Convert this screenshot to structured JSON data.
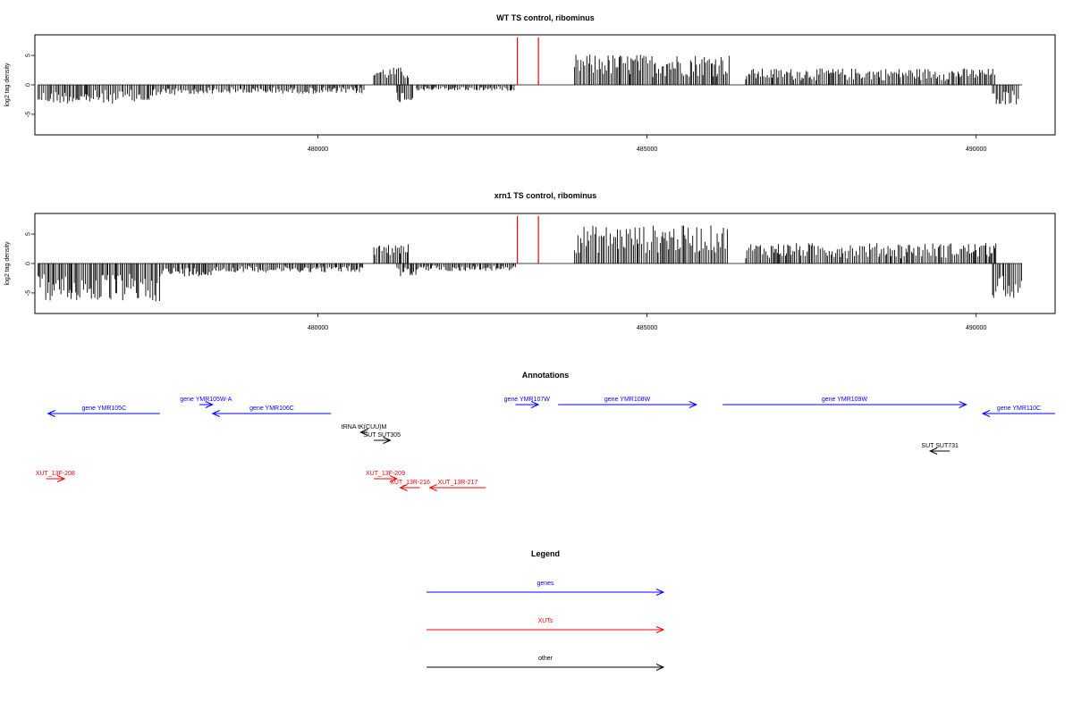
{
  "chart_data": [
    {
      "type": "bar",
      "title": "WT TS control, ribominus",
      "ylabel": "log2 tag density",
      "xlim": [
        475700,
        491200
      ],
      "ylim": [
        -8.5,
        8.5
      ],
      "x_ticks": [
        480000,
        485000,
        490000
      ],
      "y_ticks": [
        5,
        0,
        -5
      ],
      "markers": {
        "color": "#ff0000",
        "positions": [
          483030,
          483350
        ]
      },
      "density_profile": [
        {
          "range": [
            475750,
            477500
          ],
          "amp": 3.2,
          "sign": -1
        },
        {
          "range": [
            477500,
            478200
          ],
          "amp": 1.8,
          "sign": -1
        },
        {
          "range": [
            478200,
            480700
          ],
          "amp": 1.5,
          "sign": -1
        },
        {
          "range": [
            480850,
            481400
          ],
          "amp": 3.0,
          "sign": 1
        },
        {
          "range": [
            481200,
            481450
          ],
          "amp": 3.0,
          "sign": -1
        },
        {
          "range": [
            481500,
            483000
          ],
          "amp": 1.0,
          "sign": -1
        },
        {
          "range": [
            483900,
            486250
          ],
          "amp": 5.2,
          "sign": 1
        },
        {
          "range": [
            486500,
            490300
          ],
          "amp": 2.8,
          "sign": 1
        },
        {
          "range": [
            490250,
            490650
          ],
          "amp": 3.4,
          "sign": -1
        }
      ]
    },
    {
      "type": "bar",
      "title": "xrn1 TS control, ribominus",
      "ylabel": "log2 tag density",
      "xlim": [
        475700,
        491200
      ],
      "ylim": [
        -8.5,
        8.5
      ],
      "x_ticks": [
        480000,
        485000,
        490000
      ],
      "y_ticks": [
        5,
        0,
        -5
      ],
      "markers": {
        "color": "#ff0000",
        "positions": [
          483030,
          483350
        ]
      },
      "density_profile": [
        {
          "range": [
            475750,
            477600
          ],
          "amp": 6.5,
          "sign": -1
        },
        {
          "range": [
            477600,
            478400
          ],
          "amp": 2.2,
          "sign": -1
        },
        {
          "range": [
            478400,
            480700
          ],
          "amp": 1.5,
          "sign": -1
        },
        {
          "range": [
            480850,
            481400
          ],
          "amp": 3.4,
          "sign": 1
        },
        {
          "range": [
            481200,
            481500
          ],
          "amp": 2.2,
          "sign": -1
        },
        {
          "range": [
            481500,
            483000
          ],
          "amp": 1.3,
          "sign": -1
        },
        {
          "range": [
            483900,
            486250
          ],
          "amp": 6.5,
          "sign": 1
        },
        {
          "range": [
            486500,
            490300
          ],
          "amp": 3.5,
          "sign": 1
        },
        {
          "range": [
            490250,
            490700
          ],
          "amp": 6.0,
          "sign": -1
        }
      ]
    }
  ],
  "annotations": {
    "title": "Annotations",
    "xlim": [
      475700,
      491200
    ],
    "colors": {
      "genes": "#0000ff",
      "xuts": "#ff0000",
      "other": "#000000"
    },
    "features": [
      {
        "label": "gene YMR105C",
        "kind": "genes",
        "start": 475900,
        "end": 477600,
        "strand": "-",
        "row": 1
      },
      {
        "label": "gene YMR105W-A",
        "kind": "genes",
        "start": 478200,
        "end": 478400,
        "strand": "+",
        "row": 0
      },
      {
        "label": "gene YMR106C",
        "kind": "genes",
        "start": 478400,
        "end": 480200,
        "strand": "-",
        "row": 1
      },
      {
        "label": "tRNA tK(CUU)M",
        "kind": "other",
        "start": 480650,
        "end": 480750,
        "strand": "-",
        "row": 2
      },
      {
        "label": "SUT SUT305",
        "kind": "other",
        "start": 480850,
        "end": 481100,
        "strand": "+",
        "row": 3
      },
      {
        "label": "gene YMR107W",
        "kind": "genes",
        "start": 483000,
        "end": 483350,
        "strand": "+",
        "row": 0
      },
      {
        "label": "gene YMR108W",
        "kind": "genes",
        "start": 483650,
        "end": 485750,
        "strand": "+",
        "row": 0
      },
      {
        "label": "gene YMR109W",
        "kind": "genes",
        "start": 486150,
        "end": 489850,
        "strand": "+",
        "row": 0
      },
      {
        "label": "gene YMR110C",
        "kind": "genes",
        "start": 490100,
        "end": 491200,
        "strand": "-",
        "row": 1
      },
      {
        "label": "SUT SUT731",
        "kind": "other",
        "start": 489300,
        "end": 489600,
        "strand": "-",
        "row": 4
      },
      {
        "label": "XUT_13F-208",
        "kind": "xuts",
        "start": 475870,
        "end": 476150,
        "strand": "+",
        "row": 5
      },
      {
        "label": "XUT_13F-209",
        "kind": "xuts",
        "start": 480850,
        "end": 481200,
        "strand": "+",
        "row": 5
      },
      {
        "label": "XUT_13R-216",
        "kind": "xuts",
        "start": 481250,
        "end": 481550,
        "strand": "-",
        "row": 6
      },
      {
        "label": "XUT_13R-217",
        "kind": "xuts",
        "start": 481700,
        "end": 482550,
        "strand": "-",
        "row": 6
      }
    ]
  },
  "legend": {
    "title": "Legend",
    "items": [
      {
        "label": "genes",
        "color": "#0000ff"
      },
      {
        "label": "XUTs",
        "color": "#ff0000"
      },
      {
        "label": "other",
        "color": "#000000"
      }
    ]
  }
}
